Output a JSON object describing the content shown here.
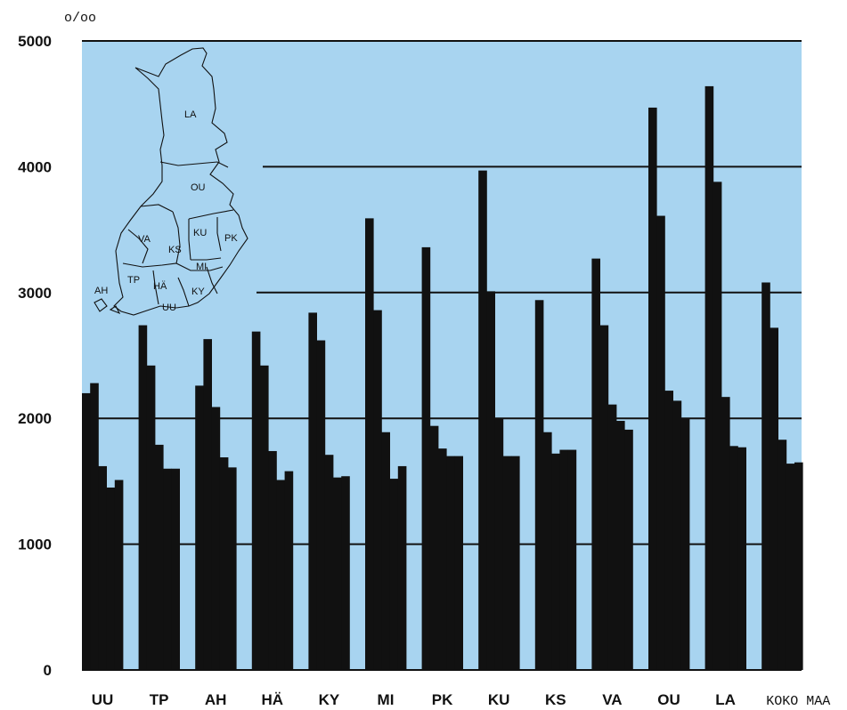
{
  "colors": {
    "plot_background": "#a8d4f0",
    "bar": "#111111",
    "gridline": "#111111",
    "map_outline": "#111111"
  },
  "inset_map": {
    "icon": "finland-regions-map",
    "labels": [
      "LA",
      "OU",
      "VA",
      "KS",
      "KU",
      "PK",
      "MI",
      "AH",
      "TP",
      "HÄ",
      "KY",
      "UU"
    ]
  },
  "chart_data": {
    "type": "bar",
    "unit_label": "o/oo",
    "ylim": [
      0,
      5000
    ],
    "yticks": [
      0,
      1000,
      2000,
      3000,
      4000,
      5000
    ],
    "grid": true,
    "categories": [
      "UU",
      "TP",
      "AH",
      "HÄ",
      "KY",
      "MI",
      "PK",
      "KU",
      "KS",
      "VA",
      "OU",
      "LA",
      "KOKO MAA"
    ],
    "bars_per_group": 5,
    "values": [
      [
        2200,
        2280,
        1620,
        1450,
        1510
      ],
      [
        2740,
        2420,
        1790,
        1600,
        1600
      ],
      [
        2260,
        2630,
        2090,
        1690,
        1610
      ],
      [
        2690,
        2420,
        1740,
        1510,
        1580
      ],
      [
        2840,
        2620,
        1710,
        1530,
        1540
      ],
      [
        3590,
        2860,
        1890,
        1520,
        1620
      ],
      [
        3360,
        1940,
        1760,
        1700,
        1700
      ],
      [
        3970,
        3010,
        2000,
        1700,
        1700
      ],
      [
        2940,
        1890,
        1720,
        1750,
        1750
      ],
      [
        3270,
        2740,
        2110,
        1980,
        1910
      ],
      [
        4470,
        3610,
        2220,
        2140,
        2000
      ],
      [
        4640,
        3880,
        2170,
        1780,
        1770
      ],
      [
        3080,
        2720,
        1830,
        1640,
        1650
      ]
    ]
  }
}
